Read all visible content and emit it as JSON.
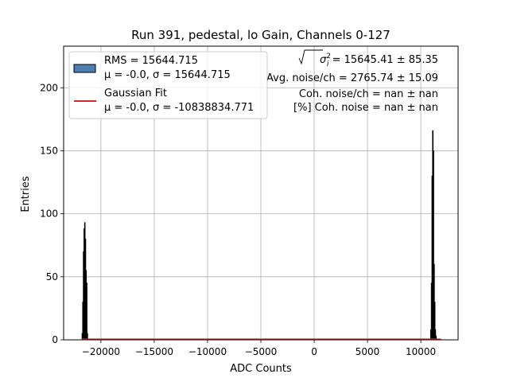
{
  "chart_data": {
    "type": "bar",
    "title": "Run 391, pedestal, lo Gain, Channels 0-127",
    "xlabel": "ADC Counts",
    "ylabel": "Entries",
    "xlim": [
      -23500,
      13500
    ],
    "ylim": [
      0,
      233
    ],
    "grid": true,
    "x_ticks": [
      -20000,
      -15000,
      -10000,
      -5000,
      0,
      5000,
      10000
    ],
    "x_tick_labels": [
      "−20000",
      "−15000",
      "−10000",
      "−5000",
      "0",
      "5000",
      "10000"
    ],
    "y_ticks": [
      0,
      50,
      100,
      150,
      200
    ],
    "y_tick_labels": [
      "0",
      "50",
      "100",
      "150",
      "200"
    ],
    "histogram": {
      "bin_width": 60,
      "fill_color": "#000000",
      "edge_color": "#000000",
      "bins": [
        {
          "x": -21750,
          "count": 5
        },
        {
          "x": -21690,
          "count": 30
        },
        {
          "x": -21630,
          "count": 70
        },
        {
          "x": -21570,
          "count": 88
        },
        {
          "x": -21510,
          "count": 93
        },
        {
          "x": -21450,
          "count": 80
        },
        {
          "x": -21390,
          "count": 55
        },
        {
          "x": -21330,
          "count": 45
        },
        {
          "x": -21270,
          "count": 5
        },
        {
          "x": 10950,
          "count": 8
        },
        {
          "x": 11010,
          "count": 45
        },
        {
          "x": 11070,
          "count": 130
        },
        {
          "x": 11130,
          "count": 166
        },
        {
          "x": 11190,
          "count": 150
        },
        {
          "x": 11250,
          "count": 60
        },
        {
          "x": 11310,
          "count": 30
        },
        {
          "x": 11370,
          "count": 8
        },
        {
          "x": 11430,
          "count": 3
        }
      ]
    },
    "fit_line": {
      "color": "#d62728",
      "x": [
        -21800,
        11900
      ],
      "y": [
        0.4,
        0.4
      ]
    },
    "legend": {
      "placement": "top-left",
      "entries": [
        {
          "kind": "patch",
          "color": "#4e7fb0",
          "line1": "RMS = 15644.715",
          "line2": "μ = -0.0, σ = 15644.715"
        },
        {
          "kind": "line",
          "color": "#d62728",
          "line1": "Gaussian Fit",
          "line2": "μ = -0.0, σ = -10838834.771"
        }
      ]
    },
    "stats_text": {
      "placement": "top-right",
      "line1_symbol": "σ",
      "line1_sub": "i",
      "line1_sup": "2",
      "line1_value": " = 15645.41 ± 85.35",
      "line2": "Avg. noise/ch = 2765.74 ± 15.09",
      "line3": "Coh. noise/ch = nan ± nan",
      "line4": "[%] Coh. noise = nan ± nan"
    }
  }
}
